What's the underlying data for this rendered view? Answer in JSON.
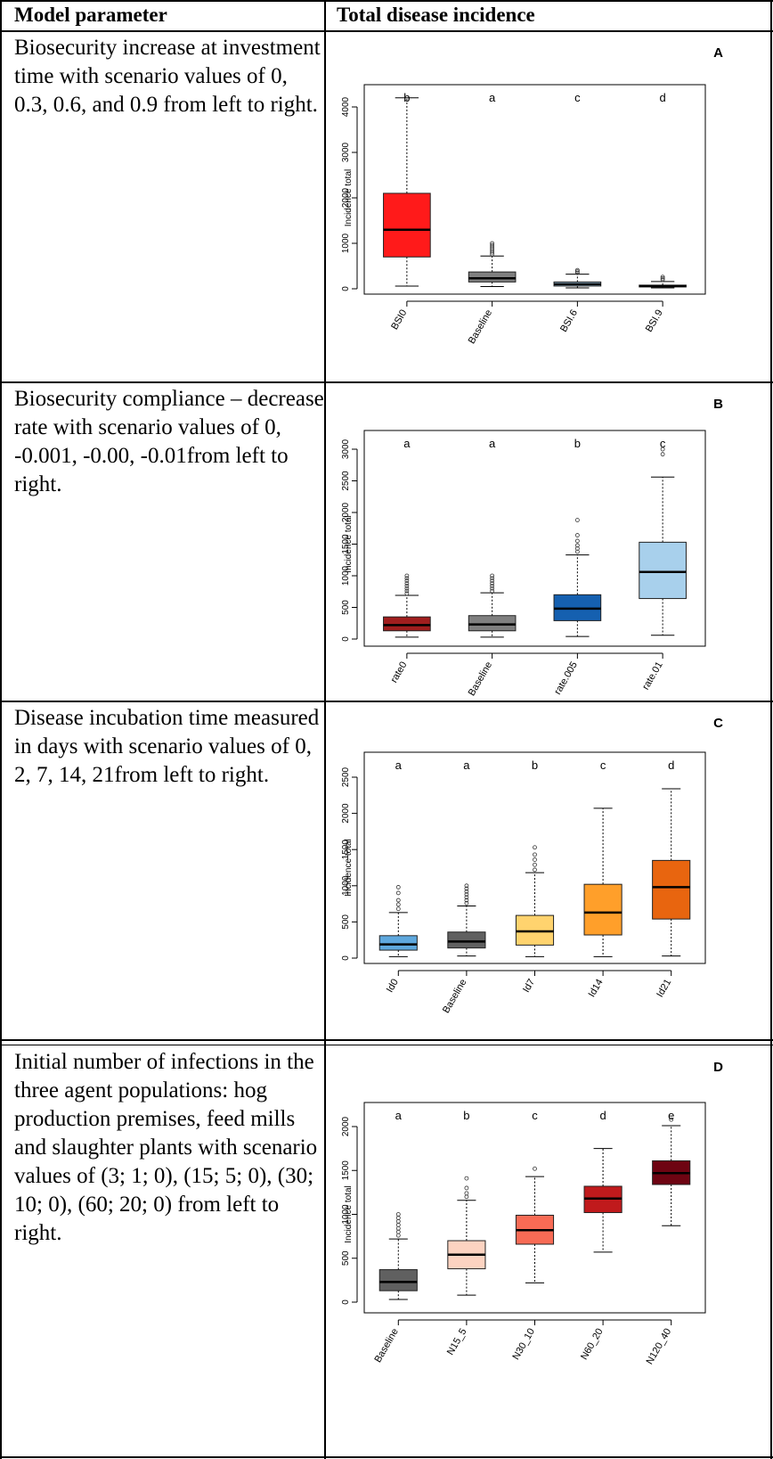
{
  "header": {
    "col1": "Model parameter",
    "col2": "Total disease incidence"
  },
  "rows": [
    {
      "description": "Biosecurity increase at investment time with scenario values of 0, 0.3, 0.6, and 0.9 from left to right."
    },
    {
      "description": "Biosecurity compliance – decrease rate with scenario values of 0, -0.001, -0.00, -0.01from left to right."
    },
    {
      "description": "Disease incubation time measured in days with scenario values of 0, 2, 7, 14, 21from left to right."
    },
    {
      "description": "Initial number of infections in the three agent populations: hog production premises, feed mills and slaughter plants with scenario values of (3; 1; 0), (15; 5; 0), (30; 10; 0), (60; 20; 0) from left to right."
    }
  ],
  "chart_data": [
    {
      "type": "box",
      "panel_label": "A",
      "ylabel": "Incidence total",
      "ylim": [
        0,
        4500
      ],
      "yticks": [
        0,
        1000,
        2000,
        3000,
        4000
      ],
      "categories": [
        "BSI0",
        "Baseline",
        "BSI.6",
        "BSI.9"
      ],
      "letters": [
        "b",
        "a",
        "c",
        "d"
      ],
      "colors": [
        "#ff1a1a",
        "#808080",
        "#a8d0ec",
        "#1f3f8f"
      ],
      "boxes": [
        {
          "min": 60,
          "q1": 700,
          "median": 1300,
          "q3": 2100,
          "max": 4200,
          "outliers": []
        },
        {
          "min": 50,
          "q1": 150,
          "median": 230,
          "q3": 370,
          "max": 720,
          "outliers": [
            760,
            800,
            840,
            880,
            920,
            960,
            1000
          ]
        },
        {
          "min": 20,
          "q1": 60,
          "median": 100,
          "q3": 150,
          "max": 320,
          "outliers": [
            350,
            380,
            410
          ]
        },
        {
          "min": 20,
          "q1": 45,
          "median": 60,
          "q3": 80,
          "max": 160,
          "outliers": [
            200,
            230,
            260
          ]
        }
      ]
    },
    {
      "type": "box",
      "panel_label": "B",
      "ylabel": "Incidence total",
      "ylim": [
        0,
        3200
      ],
      "yticks": [
        0,
        500,
        1000,
        1500,
        2000,
        2500,
        3000
      ],
      "categories": [
        "rate0",
        "Baseline",
        "rate.005",
        "rate.01"
      ],
      "letters": [
        "a",
        "a",
        "b",
        "c"
      ],
      "colors": [
        "#a01e1e",
        "#808080",
        "#1560b0",
        "#a8d0ec"
      ],
      "boxes": [
        {
          "min": 30,
          "q1": 130,
          "median": 220,
          "q3": 350,
          "max": 690,
          "outliers": [
            720,
            760,
            800,
            840,
            880,
            920,
            960,
            1000
          ]
        },
        {
          "min": 30,
          "q1": 130,
          "median": 230,
          "q3": 370,
          "max": 730,
          "outliers": [
            760,
            800,
            840,
            880,
            920,
            960,
            1000
          ]
        },
        {
          "min": 40,
          "q1": 290,
          "median": 480,
          "q3": 700,
          "max": 1330,
          "outliers": [
            1380,
            1430,
            1480,
            1550,
            1640,
            1880
          ]
        },
        {
          "min": 60,
          "q1": 640,
          "median": 1060,
          "q3": 1530,
          "max": 2560,
          "outliers": [
            2920,
            3000
          ]
        }
      ]
    },
    {
      "type": "box",
      "panel_label": "C",
      "ylabel": "Incidence total",
      "ylim": [
        0,
        2800
      ],
      "yticks": [
        0,
        500,
        1000,
        1500,
        2000,
        2500
      ],
      "categories": [
        "Id0",
        "Baseline",
        "Id7",
        "Id14",
        "Id21"
      ],
      "letters": [
        "a",
        "a",
        "b",
        "c",
        "d"
      ],
      "colors": [
        "#5fa8de",
        "#606060",
        "#ffd36e",
        "#ff9f2a",
        "#e8650f"
      ],
      "boxes": [
        {
          "min": 20,
          "q1": 110,
          "median": 190,
          "q3": 310,
          "max": 630,
          "outliers": [
            680,
            740,
            800,
            900,
            980
          ]
        },
        {
          "min": 30,
          "q1": 140,
          "median": 230,
          "q3": 360,
          "max": 720,
          "outliers": [
            760,
            800,
            840,
            880,
            920,
            960,
            1000
          ]
        },
        {
          "min": 20,
          "q1": 180,
          "median": 370,
          "q3": 590,
          "max": 1180,
          "outliers": [
            1220,
            1290,
            1360,
            1430,
            1530
          ]
        },
        {
          "min": 20,
          "q1": 320,
          "median": 630,
          "q3": 1020,
          "max": 2070,
          "outliers": []
        },
        {
          "min": 30,
          "q1": 540,
          "median": 980,
          "q3": 1350,
          "max": 2340,
          "outliers": []
        }
      ]
    },
    {
      "type": "box",
      "panel_label": "D",
      "ylabel": "Incidence total",
      "ylim": [
        0,
        2300
      ],
      "yticks": [
        0,
        500,
        1000,
        1500,
        2000
      ],
      "categories": [
        "Baseline",
        "N15_5",
        "N30_10",
        "N60_20",
        "N120_40"
      ],
      "letters": [
        "a",
        "b",
        "c",
        "d",
        "e"
      ],
      "colors": [
        "#606060",
        "#fcd3c1",
        "#f86b55",
        "#c01a1c",
        "#6e0412"
      ],
      "boxes": [
        {
          "min": 30,
          "q1": 130,
          "median": 230,
          "q3": 370,
          "max": 720,
          "outliers": [
            760,
            800,
            840,
            880,
            920,
            960,
            1000
          ]
        },
        {
          "min": 80,
          "q1": 380,
          "median": 540,
          "q3": 700,
          "max": 1160,
          "outliers": [
            1200,
            1240,
            1300,
            1410
          ]
        },
        {
          "min": 220,
          "q1": 660,
          "median": 820,
          "q3": 990,
          "max": 1430,
          "outliers": [
            1520
          ]
        },
        {
          "min": 570,
          "q1": 1020,
          "median": 1180,
          "q3": 1320,
          "max": 1750,
          "outliers": []
        },
        {
          "min": 870,
          "q1": 1340,
          "median": 1470,
          "q3": 1610,
          "max": 2010,
          "outliers": [
            2080
          ]
        }
      ]
    }
  ]
}
